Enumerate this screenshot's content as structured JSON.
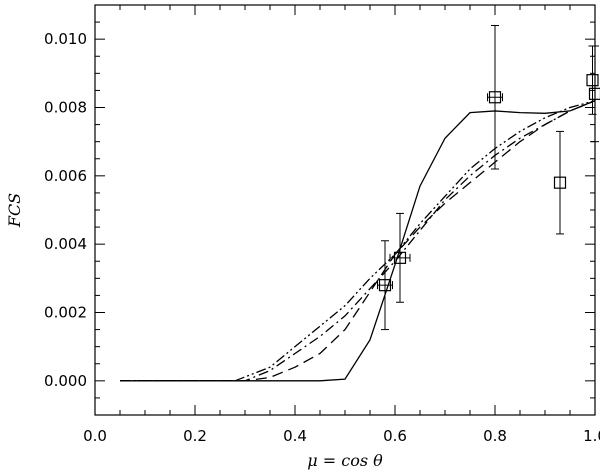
{
  "chart_data": {
    "type": "line",
    "xlabel": "μ = cos θ",
    "ylabel": "FCS",
    "xlim": [
      0.0,
      1.0
    ],
    "ylim": [
      -0.001,
      0.011
    ],
    "x_ticks": [
      0.0,
      0.2,
      0.4,
      0.6,
      0.8,
      1.0
    ],
    "y_ticks": [
      0.0,
      0.002,
      0.004,
      0.006,
      0.008,
      0.01
    ],
    "x_tick_labels": [
      "0.0",
      "0.2",
      "0.4",
      "0.6",
      "0.8",
      "1.0"
    ],
    "y_tick_labels": [
      "0.000",
      "0.002",
      "0.004",
      "0.006",
      "0.008",
      "0.010"
    ],
    "grid": false,
    "series": [
      {
        "style": "solid",
        "x": [
          0.05,
          0.3,
          0.45,
          0.5,
          0.55,
          0.6,
          0.65,
          0.7,
          0.75,
          0.8,
          0.85,
          0.9,
          0.95,
          1.0
        ],
        "y": [
          0.0,
          0.0,
          0.0,
          5e-05,
          0.0012,
          0.0034,
          0.0057,
          0.0071,
          0.00785,
          0.0079,
          0.00785,
          0.00783,
          0.0079,
          0.0082
        ]
      },
      {
        "style": "dashed",
        "x": [
          0.05,
          0.3,
          0.35,
          0.4,
          0.45,
          0.5,
          0.55,
          0.6,
          0.65,
          0.7,
          0.75,
          0.8,
          0.85,
          0.9,
          0.95,
          1.0
        ],
        "y": [
          0.0,
          0.0,
          0.0001,
          0.0004,
          0.0008,
          0.0015,
          0.0026,
          0.0037,
          0.0045,
          0.0052,
          0.0058,
          0.0064,
          0.007,
          0.0075,
          0.0079,
          0.0082
        ]
      },
      {
        "style": "dash-dot",
        "x": [
          0.05,
          0.3,
          0.35,
          0.4,
          0.45,
          0.5,
          0.55,
          0.6,
          0.65,
          0.7,
          0.75,
          0.8,
          0.85,
          0.9,
          0.95,
          1.0
        ],
        "y": [
          0.0,
          0.0,
          0.0003,
          0.0008,
          0.0013,
          0.0019,
          0.0027,
          0.0035,
          0.0044,
          0.0053,
          0.006,
          0.0066,
          0.0071,
          0.0075,
          0.0079,
          0.0082
        ]
      },
      {
        "style": "dash-dot-dot",
        "x": [
          0.05,
          0.28,
          0.35,
          0.4,
          0.45,
          0.5,
          0.55,
          0.6,
          0.65,
          0.7,
          0.75,
          0.8,
          0.85,
          0.9,
          0.95,
          1.0
        ],
        "y": [
          0.0,
          0.0,
          0.0004,
          0.001,
          0.0016,
          0.0022,
          0.003,
          0.0037,
          0.0046,
          0.0054,
          0.0062,
          0.0068,
          0.0073,
          0.0077,
          0.008,
          0.0082
        ]
      }
    ],
    "points": [
      {
        "x": 0.58,
        "y": 0.0028,
        "xerr": 0.015,
        "yerr": 0.0013
      },
      {
        "x": 0.61,
        "y": 0.0036,
        "xerr": 0.02,
        "yerr": 0.0013
      },
      {
        "x": 0.8,
        "y": 0.0083,
        "xerr": 0.015,
        "yerr": 0.0021
      },
      {
        "x": 0.93,
        "y": 0.0058,
        "xerr": 0.0,
        "yerr": 0.0015
      },
      {
        "x": 0.995,
        "y": 0.0088,
        "xerr": 0.0,
        "yerr": 0.001
      },
      {
        "x": 1.0,
        "y": 0.0084,
        "xerr": 0.0,
        "yerr": 0.0014
      }
    ]
  }
}
